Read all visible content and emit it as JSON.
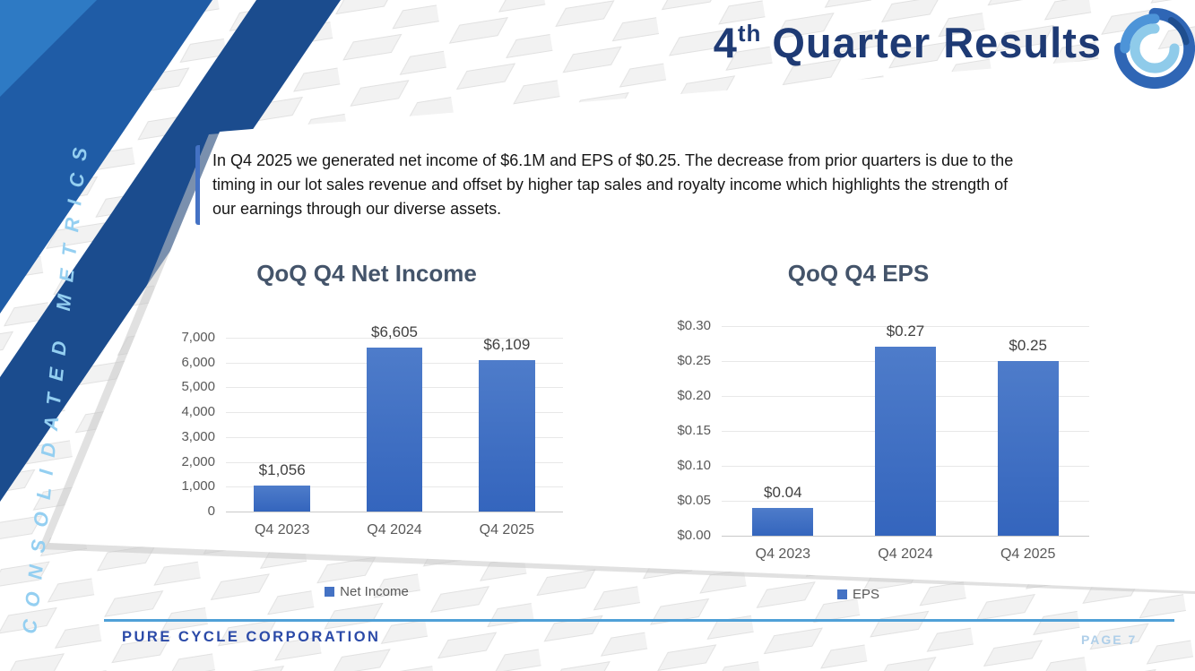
{
  "slide": {
    "title": {
      "number": "4",
      "sup": "th",
      "rest": "Quarter Results"
    }
  },
  "sidebar": {
    "vertical_label": "CONSOLIDATED METRICS"
  },
  "summary": {
    "text": "In Q4 2025 we generated net income of $6.1M and EPS of $0.25.  The decrease from prior quarters is due to the timing in our lot sales revenue and offset by higher tap sales and royalty income which highlights the strength of our earnings through our diverse assets."
  },
  "footer": {
    "company": "PURE CYCLE CORPORATION",
    "page": "PAGE 7"
  },
  "colors": {
    "title_navy": "#1E3A74",
    "chart_title": "#44546A",
    "accent_bar": "#4472C4",
    "footer_line_blue": "#4FA0D7",
    "footer_company_blue": "#2B4AA8",
    "page_label_blue": "#AFCFE9",
    "sidebar_text_blue": "#94CFF1",
    "ribbon_medium_blue": "#1F5CA6",
    "ribbon_dark_blue": "#1B4C8E",
    "ribbon_bright_blue": "#2E7AC4",
    "gridline": "#E8E8E8",
    "axis_baseline": "#C9C9C9"
  },
  "chart_data": [
    {
      "type": "bar",
      "title": "QoQ Q4 Net Income",
      "categories": [
        "Q4 2023",
        "Q4 2024",
        "Q4 2025"
      ],
      "values": [
        1056,
        6605,
        6109
      ],
      "data_labels": [
        "$1,056",
        "$6,605",
        "$6,109"
      ],
      "y_ticks": [
        "7,000",
        "6,000",
        "5,000",
        "4,000",
        "3,000",
        "2,000",
        "1,000",
        "0"
      ],
      "ylim": [
        0,
        7000
      ],
      "xlabel": "",
      "ylabel": "",
      "grid": true,
      "legend": "Net Income",
      "legend_position": "bottom",
      "bar_gradient": [
        "#4E7CCA",
        "#3465BD"
      ],
      "swatch_color": "#4472C4"
    },
    {
      "type": "bar",
      "title": "QoQ Q4 EPS",
      "categories": [
        "Q4 2023",
        "Q4 2024",
        "Q4 2025"
      ],
      "values": [
        0.04,
        0.27,
        0.25
      ],
      "data_labels": [
        "$0.04",
        "$0.27",
        "$0.25"
      ],
      "y_ticks": [
        "$0.30",
        "$0.25",
        "$0.20",
        "$0.15",
        "$0.10",
        "$0.05",
        "$0.00"
      ],
      "ylim": [
        0,
        0.3
      ],
      "xlabel": "",
      "ylabel": "",
      "grid": true,
      "legend": "EPS",
      "legend_position": "bottom",
      "bar_gradient": [
        "#4E7CCA",
        "#3465BD"
      ],
      "swatch_color": "#4472C4"
    }
  ]
}
